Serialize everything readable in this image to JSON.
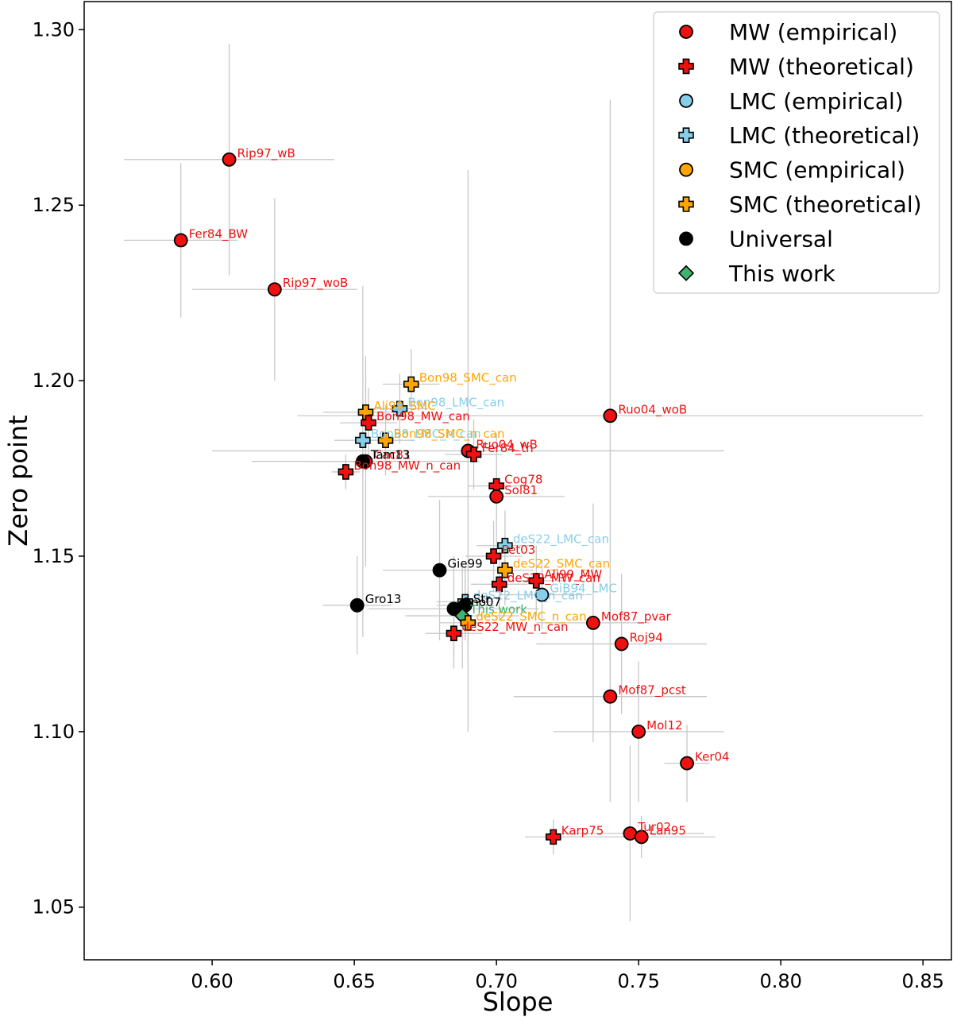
{
  "chart_data": {
    "type": "scatter",
    "xlabel": "Slope",
    "ylabel": "Zero point",
    "xlim": [
      0.555,
      0.86
    ],
    "ylim": [
      1.035,
      1.308
    ],
    "xticks": [
      "0.60",
      "0.65",
      "0.70",
      "0.75",
      "0.80",
      "0.85"
    ],
    "xtick_values": [
      0.6,
      0.65,
      0.7,
      0.75,
      0.8,
      0.85
    ],
    "yticks": [
      "1.05",
      "1.10",
      "1.15",
      "1.20",
      "1.25",
      "1.30"
    ],
    "ytick_values": [
      1.05,
      1.1,
      1.15,
      1.2,
      1.25,
      1.3
    ],
    "grid": false,
    "legend_position": "top-right",
    "colors": {
      "mw": "#ee1111",
      "lmc": "#87ceeb",
      "smc": "#ffa500",
      "universal": "#000000",
      "thiswork": "#3cb371",
      "errorbar": "#c8c8c8"
    },
    "legend": [
      {
        "label": "MW (empirical)",
        "group": "mw",
        "marker": "circle"
      },
      {
        "label": "MW (theoretical)",
        "group": "mw",
        "marker": "plus"
      },
      {
        "label": "LMC (empirical)",
        "group": "lmc",
        "marker": "circle"
      },
      {
        "label": "LMC (theoretical)",
        "group": "lmc",
        "marker": "plus"
      },
      {
        "label": "SMC (empirical)",
        "group": "smc",
        "marker": "circle"
      },
      {
        "label": "SMC (theoretical)",
        "group": "smc",
        "marker": "plus"
      },
      {
        "label": "Universal",
        "group": "universal",
        "marker": "circle"
      },
      {
        "label": "This work",
        "group": "thiswork",
        "marker": "diamond"
      }
    ],
    "points": [
      {
        "label": "Rip97_wB",
        "x": 0.606,
        "y": 1.263,
        "xerr": 0.037,
        "yerr": 0.033,
        "group": "mw",
        "marker": "circle"
      },
      {
        "label": "Fer84_BW",
        "x": 0.589,
        "y": 1.24,
        "xerr": 0.02,
        "yerr": 0.022,
        "group": "mw",
        "marker": "circle"
      },
      {
        "label": "Rip97_woB",
        "x": 0.622,
        "y": 1.226,
        "xerr": 0.029,
        "yerr": 0.026,
        "group": "mw",
        "marker": "circle"
      },
      {
        "label": "Bon98_SMC_can",
        "x": 0.67,
        "y": 1.199,
        "xerr": 0.01,
        "yerr": 0.01,
        "group": "smc",
        "marker": "plus"
      },
      {
        "label": "Bon98_LMC_can",
        "x": 0.666,
        "y": 1.192,
        "xerr": 0.01,
        "yerr": 0.01,
        "group": "lmc",
        "marker": "plus"
      },
      {
        "label": "Ali99_SMC",
        "x": 0.654,
        "y": 1.191,
        "xerr": 0.015,
        "yerr": 0.01,
        "group": "smc",
        "marker": "plus"
      },
      {
        "label": "Ruo04_woB",
        "x": 0.74,
        "y": 1.19,
        "xerr": 0.11,
        "yerr": 0.09,
        "group": "mw",
        "marker": "circle"
      },
      {
        "label": "Bon98_MW_can",
        "x": 0.655,
        "y": 1.188,
        "xerr": 0.01,
        "yerr": 0.01,
        "group": "mw",
        "marker": "plus"
      },
      {
        "label": "Bon98_LMC_n_can",
        "x": 0.653,
        "y": 1.183,
        "xerr": 0.01,
        "yerr": 0.01,
        "group": "lmc",
        "marker": "plus"
      },
      {
        "label": "Bon98_SMC_n_can",
        "x": 0.661,
        "y": 1.183,
        "xerr": 0.01,
        "yerr": 0.01,
        "group": "smc",
        "marker": "plus"
      },
      {
        "label": "Ruo04_wB",
        "x": 0.69,
        "y": 1.18,
        "xerr": 0.09,
        "yerr": 0.08,
        "group": "mw",
        "marker": "circle"
      },
      {
        "label": "Fer84_th",
        "x": 0.692,
        "y": 1.179,
        "xerr": 0.01,
        "yerr": 0.01,
        "group": "mw",
        "marker": "plus"
      },
      {
        "label": "Cac81",
        "x": 0.654,
        "y": 1.177,
        "xerr": 0.04,
        "yerr": 0.03,
        "group": "mw",
        "marker": "circle"
      },
      {
        "label": "Tam13",
        "x": 0.653,
        "y": 1.177,
        "xerr": 0.02,
        "yerr": 0.05,
        "group": "universal",
        "marker": "circle"
      },
      {
        "label": "Bon98_MW_n_can",
        "x": 0.647,
        "y": 1.174,
        "xerr": 0.005,
        "yerr": 0.005,
        "group": "mw",
        "marker": "plus"
      },
      {
        "label": "Cog78",
        "x": 0.7,
        "y": 1.17,
        "xerr": 0.01,
        "yerr": 0.01,
        "group": "mw",
        "marker": "plus"
      },
      {
        "label": "Sol81",
        "x": 0.7,
        "y": 1.167,
        "xerr": 0.024,
        "yerr": 0.018,
        "group": "mw",
        "marker": "circle"
      },
      {
        "label": "deS22_LMC_can",
        "x": 0.703,
        "y": 1.153,
        "xerr": 0.01,
        "yerr": 0.01,
        "group": "lmc",
        "marker": "plus"
      },
      {
        "label": "Pet03",
        "x": 0.699,
        "y": 1.15,
        "xerr": 0.01,
        "yerr": 0.01,
        "group": "mw",
        "marker": "plus"
      },
      {
        "label": "Gie99",
        "x": 0.68,
        "y": 1.146,
        "xerr": 0.02,
        "yerr": 0.02,
        "group": "universal",
        "marker": "circle"
      },
      {
        "label": "deS22_SMC_can",
        "x": 0.703,
        "y": 1.146,
        "xerr": 0.01,
        "yerr": 0.01,
        "group": "smc",
        "marker": "plus"
      },
      {
        "label": "Ali99_MW",
        "x": 0.714,
        "y": 1.143,
        "xerr": 0.01,
        "yerr": 0.01,
        "group": "mw",
        "marker": "plus"
      },
      {
        "label": "deS22_MW_can",
        "x": 0.701,
        "y": 1.142,
        "xerr": 0.01,
        "yerr": 0.01,
        "group": "mw",
        "marker": "plus"
      },
      {
        "label": "GiB94_LMC",
        "x": 0.716,
        "y": 1.139,
        "xerr": 0.015,
        "yerr": 0.01,
        "group": "lmc",
        "marker": "circle"
      },
      {
        "label": "deS22_LMC_n_can",
        "x": 0.689,
        "y": 1.137,
        "xerr": 0.01,
        "yerr": 0.01,
        "group": "lmc",
        "marker": "plus"
      },
      {
        "label": "Gro13",
        "x": 0.651,
        "y": 1.136,
        "xerr": 0.012,
        "yerr": 0.014,
        "group": "universal",
        "marker": "circle"
      },
      {
        "label": "Str",
        "x": 0.689,
        "y": 1.136,
        "xerr": 0.01,
        "yerr": 0.01,
        "group": "universal",
        "marker": "circle"
      },
      {
        "label": "Ono07",
        "x": 0.685,
        "y": 1.135,
        "xerr": 0.03,
        "yerr": 0.015,
        "group": "universal",
        "marker": "circle"
      },
      {
        "label": "This work",
        "x": 0.688,
        "y": 1.133,
        "xerr": 0.02,
        "yerr": 0.015,
        "group": "thiswork",
        "marker": "diamond"
      },
      {
        "label": "deS22_SMC_n_can",
        "x": 0.69,
        "y": 1.131,
        "xerr": 0.01,
        "yerr": 0.01,
        "group": "smc",
        "marker": "plus"
      },
      {
        "label": "Mof87_pvar",
        "x": 0.734,
        "y": 1.131,
        "xerr": 0.02,
        "yerr": 0.034,
        "group": "mw",
        "marker": "circle"
      },
      {
        "label": "deS22_MW_n_can",
        "x": 0.685,
        "y": 1.128,
        "xerr": 0.01,
        "yerr": 0.01,
        "group": "mw",
        "marker": "plus"
      },
      {
        "label": "Roj94",
        "x": 0.744,
        "y": 1.125,
        "xerr": 0.03,
        "yerr": 0.02,
        "group": "mw",
        "marker": "circle"
      },
      {
        "label": "Mof87_pcst",
        "x": 0.74,
        "y": 1.11,
        "xerr": 0.034,
        "yerr": 0.03,
        "group": "mw",
        "marker": "circle"
      },
      {
        "label": "Mol12",
        "x": 0.75,
        "y": 1.1,
        "xerr": 0.03,
        "yerr": 0.02,
        "group": "mw",
        "marker": "circle"
      },
      {
        "label": "Ker04",
        "x": 0.767,
        "y": 1.091,
        "xerr": 0.008,
        "yerr": 0.011,
        "group": "mw",
        "marker": "circle"
      },
      {
        "label": "Tur02",
        "x": 0.747,
        "y": 1.071,
        "xerr": 0.026,
        "yerr": 0.025,
        "group": "mw",
        "marker": "circle"
      },
      {
        "label": "Lan95",
        "x": 0.751,
        "y": 1.07,
        "xerr": 0.026,
        "yerr": 0.006,
        "group": "mw",
        "marker": "circle"
      },
      {
        "label": "Karp75",
        "x": 0.72,
        "y": 1.07,
        "xerr": 0.01,
        "yerr": 0.005,
        "group": "mw",
        "marker": "plus"
      }
    ]
  }
}
